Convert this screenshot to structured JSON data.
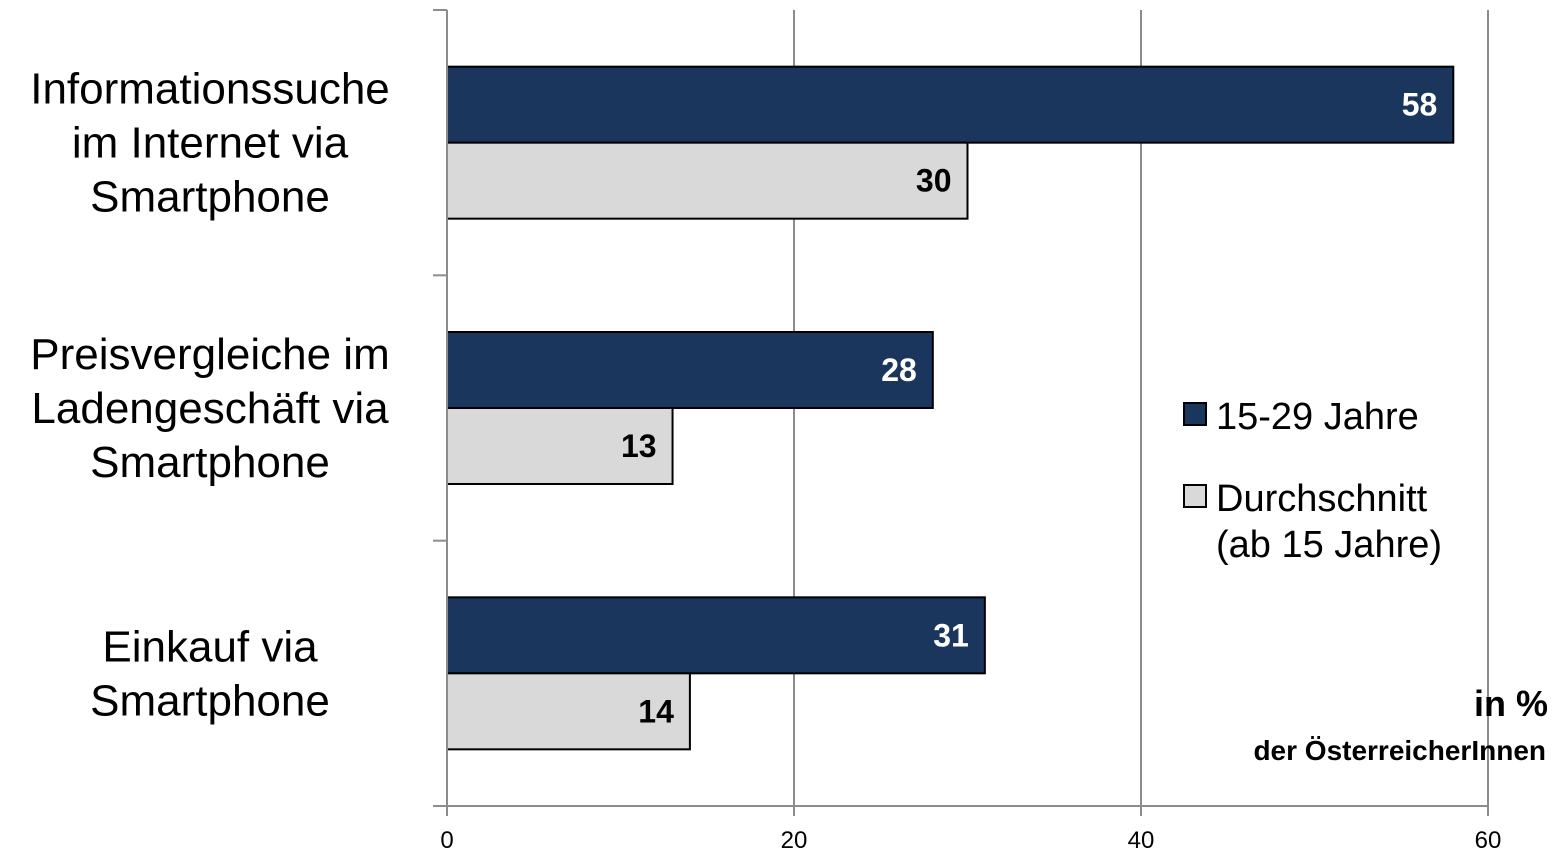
{
  "chart_data": {
    "type": "bar",
    "orientation": "horizontal",
    "categories": [
      [
        "Informationssuche",
        "im Internet via",
        "Smartphone"
      ],
      [
        "Preisvergleiche im",
        "Ladengeschäft via",
        "Smartphone"
      ],
      [
        "Einkauf via",
        "Smartphone"
      ]
    ],
    "series": [
      {
        "name": "15-29 Jahre",
        "legend_lines": [
          "15-29 Jahre"
        ],
        "values": [
          58,
          28,
          31
        ],
        "color": "#1b365d",
        "label_color": "#ffffff"
      },
      {
        "name": "Durchschnitt (ab 15 Jahre)",
        "legend_lines": [
          "Durchschnitt",
          "(ab 15 Jahre)"
        ],
        "values": [
          30,
          13,
          14
        ],
        "color": "#d9d9d9",
        "label_color": "#000000"
      }
    ],
    "xlim": [
      0,
      60
    ],
    "xticks": [
      0,
      20,
      40,
      60
    ],
    "grid": true,
    "legend_position": "right",
    "unit_label": [
      "in %",
      "der ÖsterreicherInnen"
    ]
  }
}
